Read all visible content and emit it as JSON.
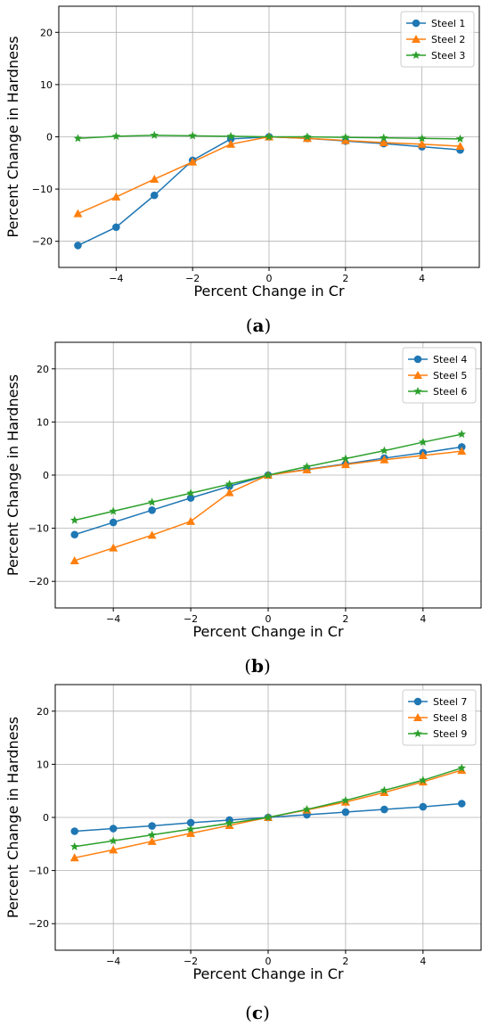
{
  "chart_data": [
    {
      "type": "line",
      "panel": "a",
      "xlabel": "Percent Change in Cr",
      "ylabel": "Percent Change in Hardness",
      "xlim": [
        -5.5,
        5.5
      ],
      "ylim": [
        -25,
        25
      ],
      "xticks": [
        -4,
        -2,
        0,
        2,
        4
      ],
      "yticks": [
        -20,
        -10,
        0,
        10,
        20
      ],
      "grid": true,
      "legend": "top-right",
      "x": [
        -5,
        -4,
        -3,
        -2,
        -1,
        0,
        1,
        2,
        3,
        4,
        5
      ],
      "series": [
        {
          "name": "Steel 1",
          "color": "#1f77b4",
          "marker": "circle",
          "values": [
            -20.8,
            -17.3,
            -11.2,
            -4.5,
            -0.4,
            0,
            -0.3,
            -0.8,
            -1.3,
            -1.9,
            -2.5
          ]
        },
        {
          "name": "Steel 2",
          "color": "#ff7f0e",
          "marker": "triangle",
          "values": [
            -14.7,
            -11.5,
            -8.1,
            -4.8,
            -1.4,
            0,
            -0.3,
            -0.7,
            -1.1,
            -1.4,
            -1.8
          ]
        },
        {
          "name": "Steel 3",
          "color": "#2ca02c",
          "marker": "star",
          "values": [
            -0.3,
            0.1,
            0.3,
            0.2,
            0.1,
            0,
            0,
            -0.1,
            -0.2,
            -0.3,
            -0.4
          ]
        }
      ]
    },
    {
      "type": "line",
      "panel": "b",
      "xlabel": "Percent Change in Cr",
      "ylabel": "Percent Change in Hardness",
      "xlim": [
        -5.5,
        5.5
      ],
      "ylim": [
        -25,
        25
      ],
      "xticks": [
        -4,
        -2,
        0,
        2,
        4
      ],
      "yticks": [
        -20,
        -10,
        0,
        10,
        20
      ],
      "grid": true,
      "legend": "top-right",
      "x": [
        -5,
        -4,
        -3,
        -2,
        -1,
        0,
        1,
        2,
        3,
        4,
        5
      ],
      "series": [
        {
          "name": "Steel 4",
          "color": "#1f77b4",
          "marker": "circle",
          "values": [
            -11.2,
            -8.9,
            -6.6,
            -4.3,
            -2.1,
            0,
            1.1,
            2.1,
            3.2,
            4.2,
            5.3
          ]
        },
        {
          "name": "Steel 5",
          "color": "#ff7f0e",
          "marker": "triangle",
          "values": [
            -16.1,
            -13.7,
            -11.3,
            -8.7,
            -3.3,
            0,
            1.0,
            2.0,
            2.9,
            3.7,
            4.5
          ]
        },
        {
          "name": "Steel 6",
          "color": "#2ca02c",
          "marker": "star",
          "values": [
            -8.5,
            -6.8,
            -5.1,
            -3.4,
            -1.7,
            0,
            1.6,
            3.1,
            4.6,
            6.2,
            7.7
          ]
        }
      ]
    },
    {
      "type": "line",
      "panel": "c",
      "xlabel": "Percent Change in Cr",
      "ylabel": "Percent Change in Hardness",
      "xlim": [
        -5.5,
        5.5
      ],
      "ylim": [
        -25,
        25
      ],
      "xticks": [
        -4,
        -2,
        0,
        2,
        4
      ],
      "yticks": [
        -20,
        -10,
        0,
        10,
        20
      ],
      "grid": true,
      "legend": "top-right",
      "x": [
        -5,
        -4,
        -3,
        -2,
        -1,
        0,
        1,
        2,
        3,
        4,
        5
      ],
      "series": [
        {
          "name": "Steel 7",
          "color": "#1f77b4",
          "marker": "circle",
          "values": [
            -2.6,
            -2.1,
            -1.6,
            -1.0,
            -0.5,
            0,
            0.5,
            1.0,
            1.5,
            2.0,
            2.6
          ]
        },
        {
          "name": "Steel 8",
          "color": "#ff7f0e",
          "marker": "triangle",
          "values": [
            -7.6,
            -6.1,
            -4.5,
            -3.0,
            -1.5,
            0,
            1.4,
            2.9,
            4.7,
            6.7,
            8.9
          ]
        },
        {
          "name": "Steel 9",
          "color": "#2ca02c",
          "marker": "star",
          "values": [
            -5.5,
            -4.4,
            -3.3,
            -2.2,
            -1.1,
            0,
            1.5,
            3.2,
            5.1,
            7.0,
            9.3
          ]
        }
      ]
    }
  ]
}
